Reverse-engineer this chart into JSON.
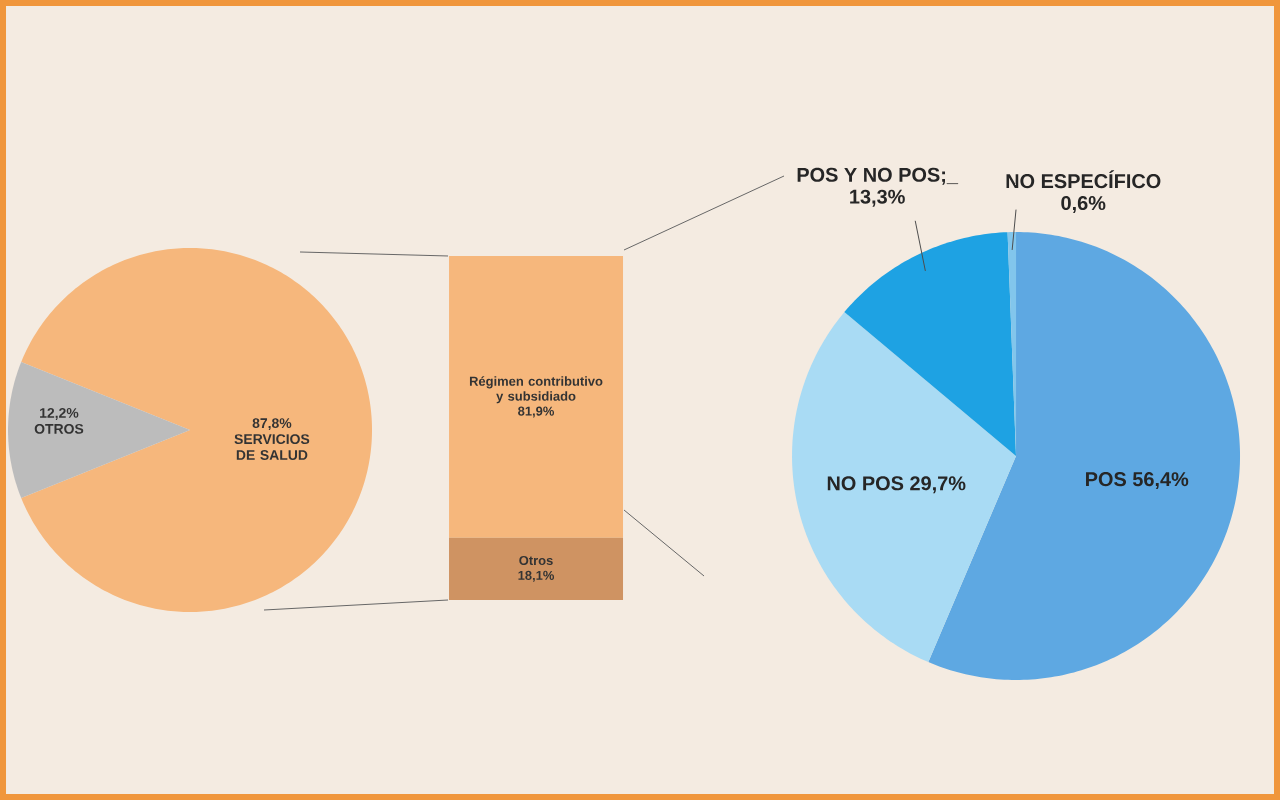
{
  "chart_data": [
    {
      "type": "pie",
      "categories": [
        "SERVICIOS DE SALUD",
        "OTROS"
      ],
      "values": [
        87.8,
        12.2
      ],
      "colors": [
        "#f6b77c",
        "#bcbcbc"
      ],
      "value_labels": [
        "87,8%",
        "12,2%"
      ]
    },
    {
      "type": "bar",
      "stacked": true,
      "categories": [
        null
      ],
      "series": [
        {
          "name": "Otros",
          "color": "#cf9362",
          "values": [
            18.1
          ],
          "value_labels": [
            "18,1%"
          ]
        },
        {
          "name": "Régimen contributivo y subsidiado",
          "color": "#f6b77c",
          "values": [
            81.9
          ],
          "value_labels": [
            "81,9%"
          ]
        }
      ]
    },
    {
      "type": "pie",
      "categories": [
        "POS",
        "NO POS",
        "POS Y NO POS;_",
        "NO ESPECÍFICO"
      ],
      "values": [
        56.4,
        29.7,
        13.3,
        0.6
      ],
      "colors": [
        "#5ea8e2",
        "#a9dbf4",
        "#1ea2e3",
        "#82c6ec"
      ],
      "value_labels": [
        "56,4%",
        "29,7%",
        "13,3%",
        "0,6%"
      ]
    }
  ]
}
